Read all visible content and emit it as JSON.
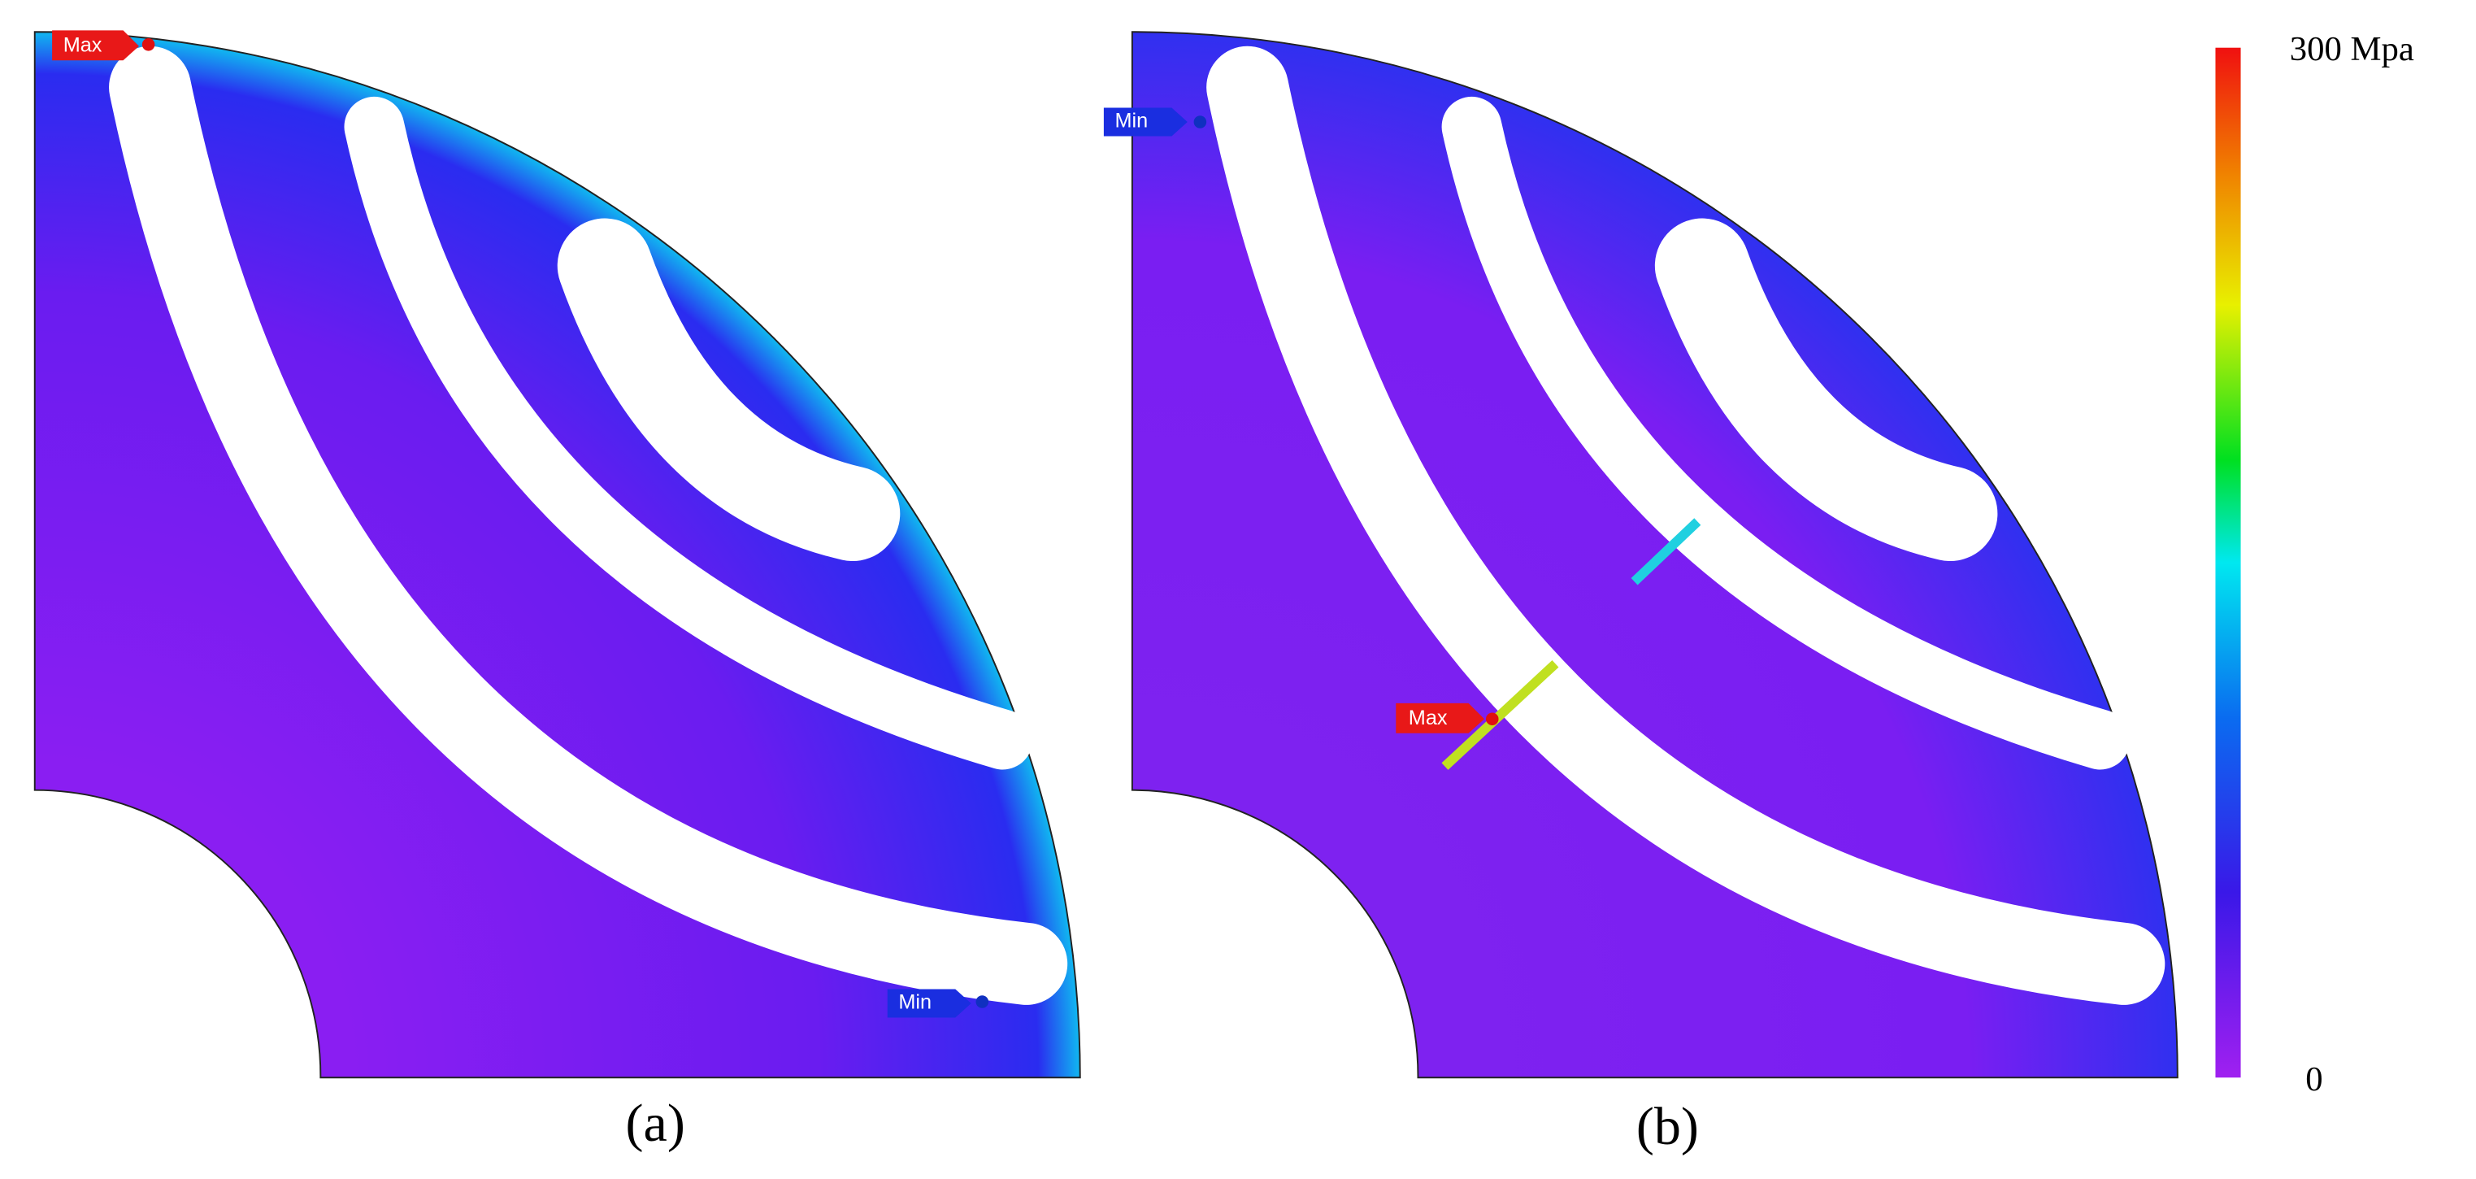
{
  "panels": [
    {
      "label": "(a)",
      "max_tag": "Max",
      "min_tag": "Min"
    },
    {
      "label": "(b)",
      "max_tag": "Max",
      "min_tag": "Min"
    }
  ],
  "colorbar": {
    "max_label": "300 Mpa",
    "min_label": "0"
  }
}
